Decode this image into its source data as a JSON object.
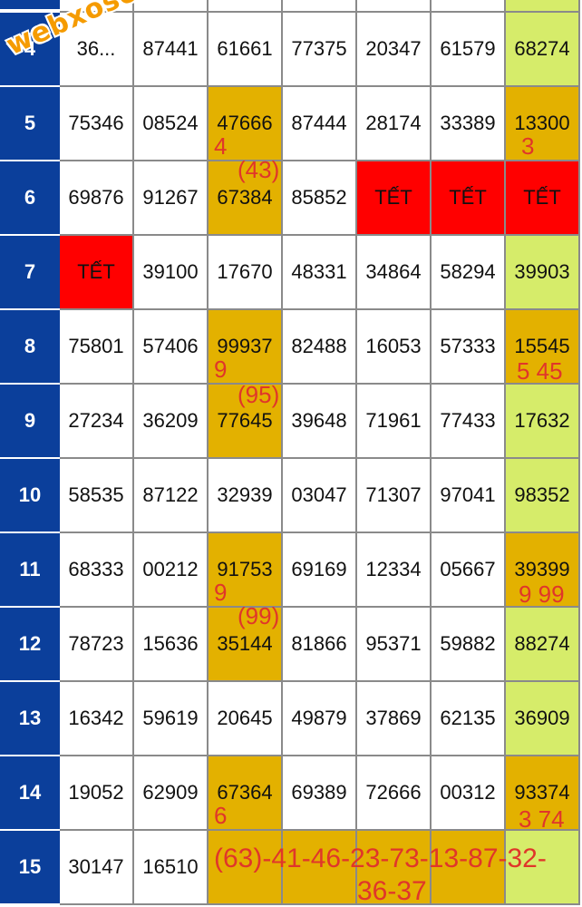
{
  "watermark": "webxoso.net",
  "rows": [
    {
      "label": "4",
      "cells": [
        "36...",
        "87441",
        "61661",
        "77375",
        "20347",
        "61579",
        "68274"
      ]
    },
    {
      "label": "5",
      "cells": [
        "75346",
        "08524",
        "47666",
        "87444",
        "28174",
        "33389",
        "13300"
      ]
    },
    {
      "label": "6",
      "cells": [
        "69876",
        "91267",
        "67384",
        "85852",
        "TẾT",
        "TẾT",
        "TẾT"
      ]
    },
    {
      "label": "7",
      "cells": [
        "TẾT",
        "39100",
        "17670",
        "48331",
        "34864",
        "58294",
        "39903"
      ]
    },
    {
      "label": "8",
      "cells": [
        "75801",
        "57406",
        "99937",
        "82488",
        "16053",
        "57333",
        "15545"
      ]
    },
    {
      "label": "9",
      "cells": [
        "27234",
        "36209",
        "77645",
        "39648",
        "71961",
        "77433",
        "17632"
      ]
    },
    {
      "label": "10",
      "cells": [
        "58535",
        "87122",
        "32939",
        "03047",
        "71307",
        "97041",
        "98352"
      ]
    },
    {
      "label": "11",
      "cells": [
        "68333",
        "00212",
        "91753",
        "69169",
        "12334",
        "05667",
        "39399"
      ]
    },
    {
      "label": "12",
      "cells": [
        "78723",
        "15636",
        "35144",
        "81866",
        "95371",
        "59882",
        "88274"
      ]
    },
    {
      "label": "13",
      "cells": [
        "16342",
        "59619",
        "20645",
        "49879",
        "37869",
        "62135",
        "36909"
      ]
    },
    {
      "label": "14",
      "cells": [
        "19052",
        "62909",
        "67364",
        "69389",
        "72666",
        "00312",
        "93374"
      ]
    },
    {
      "label": "15",
      "cells": [
        "30147",
        "16510",
        "",
        "",
        "",
        "",
        ""
      ]
    }
  ],
  "annotations": {
    "r5_c3": "4",
    "r5_c7": "3",
    "r6_c3": "(43)",
    "r8_c3": "9",
    "r8_c7": "5  45",
    "r9_c3": "(95)",
    "r11_c3": "9",
    "r11_c7": "9 99",
    "r12_c3": "(99)",
    "r14_c3": "6",
    "r14_c7": "3 74",
    "r15_line1": "(63)-41-46-23-73-13-87-32-",
    "r15_line2": "36-37"
  },
  "colors": {
    "header_blue": "#0b3f9b",
    "highlight_gold": "#e3b100",
    "highlight_green": "#d6ec6a",
    "tet_red": "#ff0000",
    "annotation_red": "#e0362a",
    "watermark_orange": "#f59b00"
  }
}
